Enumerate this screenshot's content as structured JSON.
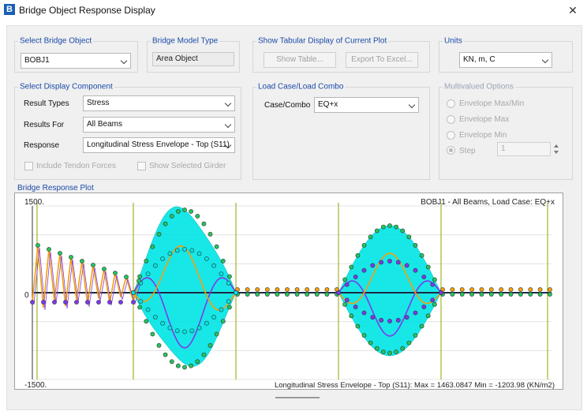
{
  "window": {
    "title": "Bridge Object Response Display",
    "app_icon_letter": "B"
  },
  "select_bridge_object": {
    "title": "Select Bridge Object",
    "value": "BOBJ1"
  },
  "bridge_model_type": {
    "title": "Bridge Model Type",
    "value": "Area Object"
  },
  "tabular": {
    "title": "Show Tabular Display of Current Plot",
    "show_table": "Show Table...",
    "export_excel": "Export To Excel..."
  },
  "units": {
    "title": "Units",
    "value": "KN, m, C"
  },
  "display_component": {
    "title": "Select Display Component",
    "result_types_label": "Result Types",
    "result_types_value": "Stress",
    "results_for_label": "Results For",
    "results_for_value": "All Beams",
    "response_label": "Response",
    "response_value": "Longitudinal Stress Envelope - Top (S11)",
    "include_tendon": "Include Tendon Forces",
    "show_selected_girder": "Show Selected Girder"
  },
  "load_case": {
    "title": "Load Case/Load Combo",
    "case_label": "Case/Combo",
    "case_value": "EQ+x"
  },
  "multivalued": {
    "title": "Multivalued Options",
    "env_maxmin": "Envelope Max/Min",
    "env_max": "Envelope Max",
    "env_min": "Envelope Min",
    "step": "Step",
    "step_value": "1"
  },
  "plot": {
    "title": "Bridge Response Plot",
    "header": "BOBJ1 - All Beams,  Load Case: EQ+x",
    "footer": "Longitudinal Stress Envelope - Top (S11):  Max = 1463.0847     Min = -1203.98  (KN/m2)",
    "y_top_label": "1500.",
    "y_zero_label": "0",
    "y_bottom_label": "-1500."
  },
  "chart_data": {
    "type": "line",
    "ylim": [
      -1500,
      1500
    ],
    "grid": true,
    "colors": {
      "envelope_fill": "#00e5e5",
      "outer_points": "#22c55e",
      "mid_points": "#7c3aed",
      "inner_points": "#f59e0b",
      "baseline": "#1f2a44",
      "grid": "#9aa100"
    }
  }
}
